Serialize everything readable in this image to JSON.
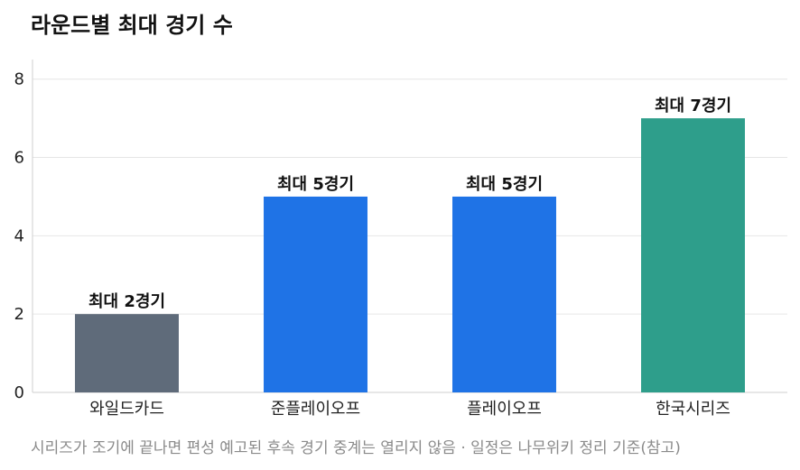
{
  "title": "라운드별 최대 경기 수",
  "footnote": "시리즈가 조기에 끝나면 편성 예고된 후속 경기 중계는 열리지 않음 · 일정은 나무위키 정리 기준(참고)",
  "chart_data": {
    "type": "bar",
    "categories": [
      "와일드카드",
      "준플레이오프",
      "플레이오프",
      "한국시리즈"
    ],
    "values": [
      2,
      5,
      5,
      7
    ],
    "data_labels": [
      "최대 2경기",
      "최대 5경기",
      "최대 5경기",
      "최대 7경기"
    ],
    "colors": [
      "#5f6b7a",
      "#1f73e6",
      "#1f73e6",
      "#2e9e8b"
    ],
    "ylim": [
      0,
      8.5
    ],
    "yticks": [
      0,
      2,
      4,
      6,
      8
    ],
    "grid": true,
    "xlabel": "",
    "ylabel": ""
  }
}
